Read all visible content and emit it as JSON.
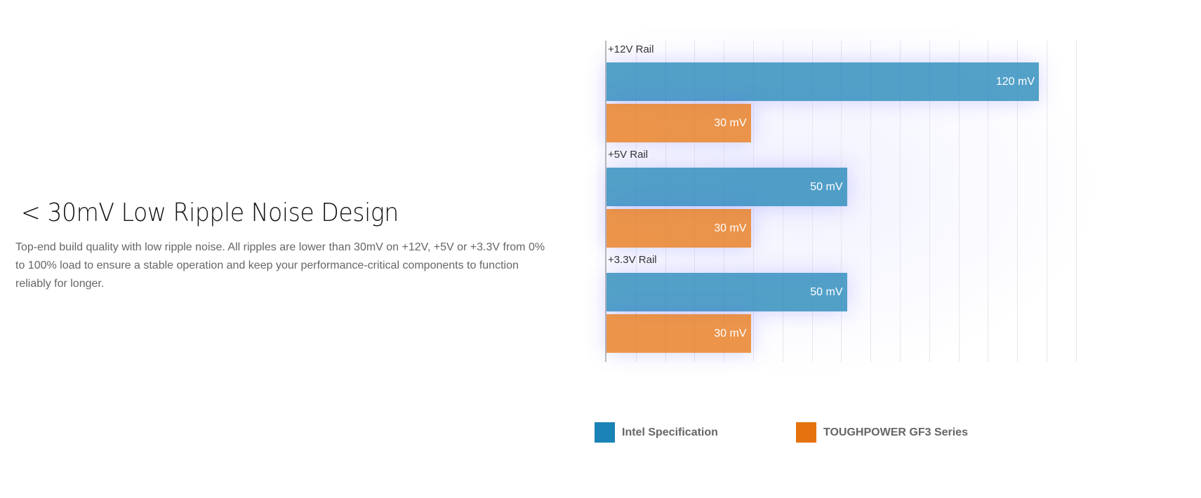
{
  "heading": "< 30mV Low Ripple Noise Design",
  "description": "Top-end build quality with low ripple noise. All ripples are lower than 30mV on +12V, +5V or +3.3V from 0% to 100% load to ensure a stable operation and keep your performance-critical components to function reliably for longer.",
  "chart_data": {
    "type": "bar",
    "orientation": "horizontal",
    "categories": [
      "+12V Rail",
      "+5V Rail",
      "+3.3V Rail"
    ],
    "series": [
      {
        "name": "Intel Specification",
        "color": "#1a82b6",
        "values": [
          120,
          50,
          50
        ],
        "labels": [
          "120 mV",
          "50 mV",
          "50 mV"
        ]
      },
      {
        "name": "TOUGHPOWER GF3 Series",
        "color": "#e5720e",
        "values": [
          30,
          30,
          30
        ],
        "labels": [
          "30 mV",
          "30 mV",
          "30 mV"
        ]
      }
    ],
    "unit": "mV",
    "grid": true,
    "legend": "bottom"
  }
}
